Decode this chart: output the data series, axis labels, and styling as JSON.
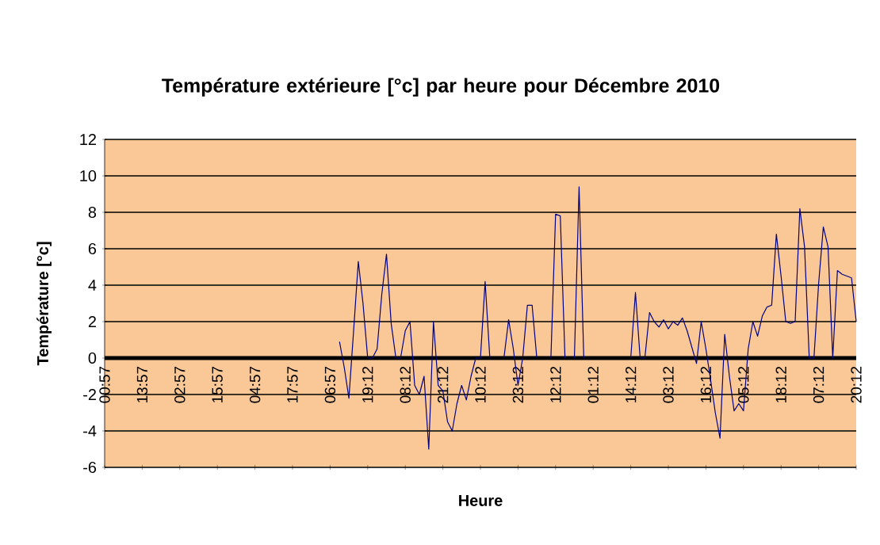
{
  "chart_data": {
    "type": "line",
    "title": "Température extérieure [°c] par heure pour Décembre 2010",
    "xlabel": "Heure",
    "ylabel": "Température [°c]",
    "categories": [
      "00:57",
      null,
      null,
      null,
      null,
      null,
      null,
      null,
      "13:57",
      null,
      null,
      null,
      null,
      null,
      null,
      null,
      "02:57",
      null,
      null,
      null,
      null,
      null,
      null,
      null,
      "15:57",
      null,
      null,
      null,
      null,
      null,
      null,
      null,
      "04:57",
      null,
      null,
      null,
      null,
      null,
      null,
      null,
      "17:57",
      null,
      null,
      null,
      null,
      null,
      null,
      null,
      "06:57",
      null,
      null,
      null,
      null,
      null,
      null,
      null,
      "19:12",
      null,
      null,
      null,
      null,
      null,
      null,
      null,
      "08:12",
      null,
      null,
      null,
      null,
      null,
      null,
      null,
      "21:12",
      null,
      null,
      null,
      null,
      null,
      null,
      null,
      "10:12",
      null,
      null,
      null,
      null,
      null,
      null,
      null,
      "23:12",
      null,
      null,
      null,
      null,
      null,
      null,
      null,
      "12:12",
      null,
      null,
      null,
      null,
      null,
      null,
      null,
      "01:12",
      null,
      null,
      null,
      null,
      null,
      null,
      null,
      "14:12",
      null,
      null,
      null,
      null,
      null,
      null,
      null,
      "03:12",
      null,
      null,
      null,
      null,
      null,
      null,
      null,
      "16:12",
      null,
      null,
      null,
      null,
      null,
      null,
      null,
      "05:12",
      null,
      null,
      null,
      null,
      null,
      null,
      null,
      "18:12",
      null,
      null,
      null,
      null,
      null,
      null,
      null,
      "07:12",
      null,
      null,
      null,
      null,
      null,
      null,
      null,
      "20:12"
    ],
    "series": [
      {
        "color": "#000080",
        "values": [
          null,
          null,
          null,
          null,
          null,
          null,
          null,
          null,
          null,
          null,
          null,
          null,
          null,
          null,
          null,
          null,
          null,
          null,
          null,
          null,
          null,
          null,
          null,
          null,
          null,
          null,
          null,
          null,
          null,
          null,
          null,
          null,
          null,
          null,
          null,
          null,
          null,
          null,
          null,
          null,
          null,
          null,
          null,
          null,
          null,
          null,
          null,
          null,
          null,
          null,
          0.9,
          -0.5,
          -2.2,
          1.5,
          5.3,
          3,
          0,
          0,
          0.5,
          3.5,
          5.7,
          1.9,
          0,
          0,
          1.5,
          2.0,
          -1.5,
          -2,
          -1,
          -5,
          2.0,
          -1.5,
          -1.8,
          -3.5,
          -4,
          -2.5,
          -1.5,
          -2.3,
          -1,
          0,
          0,
          4.2,
          0,
          null,
          null,
          0,
          2.1,
          0.5,
          -1.5,
          0,
          2.9,
          2.9,
          0,
          null,
          null,
          0,
          7.9,
          7.8,
          0,
          null,
          0,
          9.4,
          0,
          null,
          null,
          null,
          null,
          null,
          null,
          null,
          null,
          null,
          0,
          3.6,
          0,
          0,
          2.5,
          2.0,
          1.7,
          2.1,
          1.6,
          2.0,
          1.8,
          2.2,
          1.5,
          0.6,
          -0.3,
          2.0,
          0.5,
          -1.2,
          -3,
          -4.4,
          1.3,
          -1,
          -2.9,
          -2.5,
          -2.9,
          0.5,
          2.0,
          1.2,
          2.3,
          2.8,
          2.9,
          6.8,
          4.5,
          2,
          1.9,
          2.0,
          8.2,
          6.1,
          0,
          0,
          4.1,
          7.2,
          6.1,
          0,
          4.8,
          4.6,
          4.5,
          4.4,
          2.0
        ]
      }
    ],
    "ylim": [
      -6,
      12
    ],
    "yticks": [
      -6,
      -4,
      -2,
      0,
      2,
      4,
      6,
      8,
      10,
      12
    ],
    "grid": "y",
    "legend": false,
    "marker": "none",
    "line_style": "solid"
  }
}
